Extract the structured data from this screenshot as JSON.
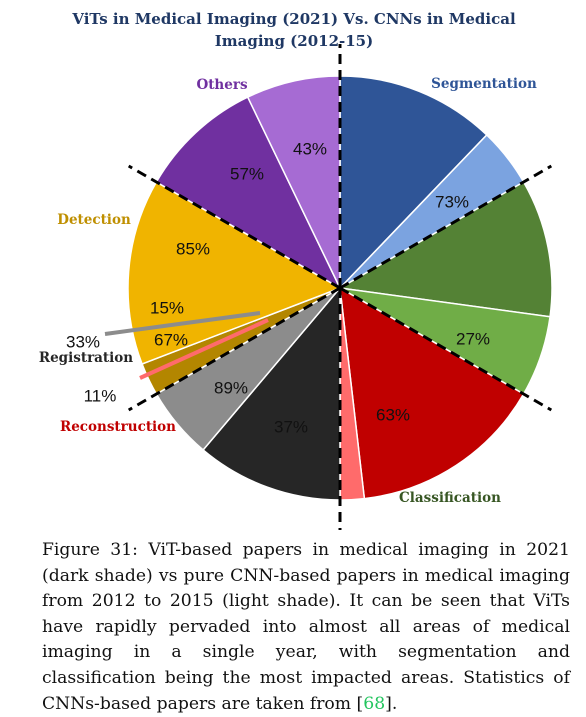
{
  "chart_data": {
    "type": "pie",
    "title_lines": [
      "ViTs in Medical Imaging (2021) Vs.  CNNs in Medical",
      "Imaging (2012-15)"
    ],
    "categories": [
      {
        "name": "Segmentation",
        "color": "#2f5597",
        "vit_pct": "73%",
        "cnn_pct": "27%",
        "vit_color": "#2f5597",
        "cnn_color": "#7ba3e0",
        "dark_first": true
      },
      {
        "name": "Classification",
        "color": "#375623",
        "vit_pct": "63%",
        "cnn_pct": "37%",
        "vit_color": "#548235",
        "cnn_color": "#70ad47",
        "dark_first": true
      },
      {
        "name": "Reconstruction",
        "color": "#c00000",
        "vit_pct": "89%",
        "cnn_pct": "11%",
        "vit_color": "#c00000",
        "cnn_color": "#ff6b6b",
        "dark_first": true
      },
      {
        "name": "Registration",
        "color": "#262626",
        "vit_pct": "67%",
        "cnn_pct": "33%",
        "vit_color": "#262626",
        "cnn_color": "#8c8c8c",
        "dark_first": true
      },
      {
        "name": "Detection",
        "color": "#bf8f00",
        "vit_pct": "85%",
        "cnn_pct": "15%",
        "vit_color": "#f0b400",
        "cnn_color": "#b38600",
        "dark_first": false
      },
      {
        "name": "Others",
        "color": "#7030a0",
        "vit_pct": "57%",
        "cnn_pct": "43%",
        "vit_color": "#7030a0",
        "cnn_color": "#a66bd3",
        "dark_first": true
      }
    ],
    "slices": [
      {
        "category": "Segmentation",
        "label": "73%",
        "value": 73,
        "color": "#2f5597"
      },
      {
        "category": "Segmentation",
        "label": "27%",
        "value": 27,
        "color": "#7ba3e0"
      },
      {
        "category": "Classification",
        "label": "63%",
        "value": 63,
        "color": "#548235"
      },
      {
        "category": "Classification",
        "label": "37%",
        "value": 37,
        "color": "#70ad47"
      },
      {
        "category": "Reconstruction",
        "label": "89%",
        "value": 89,
        "color": "#c00000"
      },
      {
        "category": "Reconstruction",
        "label": "11%",
        "value": 11,
        "color": "#ff6b6b"
      },
      {
        "category": "Registration",
        "label": "67%",
        "value": 67,
        "color": "#262626"
      },
      {
        "category": "Registration",
        "label": "33%",
        "value": 33,
        "color": "#8c8c8c"
      },
      {
        "category": "Detection",
        "label": "15%",
        "value": 15,
        "color": "#b38600"
      },
      {
        "category": "Detection",
        "label": "85%",
        "value": 85,
        "color": "#f0b400"
      },
      {
        "category": "Others",
        "label": "57%",
        "value": 57,
        "color": "#7030a0"
      },
      {
        "category": "Others",
        "label": "43%",
        "value": 43,
        "color": "#a66bd3"
      }
    ]
  },
  "caption": {
    "text": "Figure 31: ViT-based papers in medical imaging in 2021 (dark shade) vs pure CNN-based papers in medical imaging from 2012 to 2015 (light shade). It can be seen that ViTs have rapidly pervaded into almost all areas of medical imaging in a single year, with segmentation and classification being the most impacted areas. Statistics of CNNs-based papers are taken from [",
    "ref": "68",
    "end": "]."
  }
}
